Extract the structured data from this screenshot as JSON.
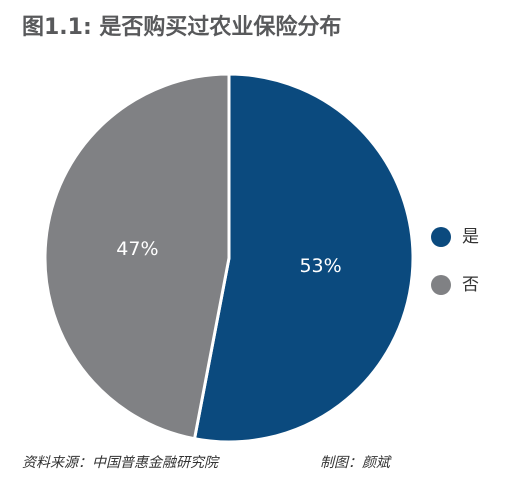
{
  "chart_data": {
    "type": "pie",
    "title": "图1.1: 是否购买过农业保险分布",
    "categories": [
      "是",
      "否"
    ],
    "values": [
      53,
      47
    ],
    "value_labels": [
      "53%",
      "47%"
    ],
    "colors": [
      "#0b4a7e",
      "#808184"
    ],
    "legend": "right",
    "source": "资料来源：中国普惠金融研究院",
    "credit": "制图：颜斌"
  }
}
